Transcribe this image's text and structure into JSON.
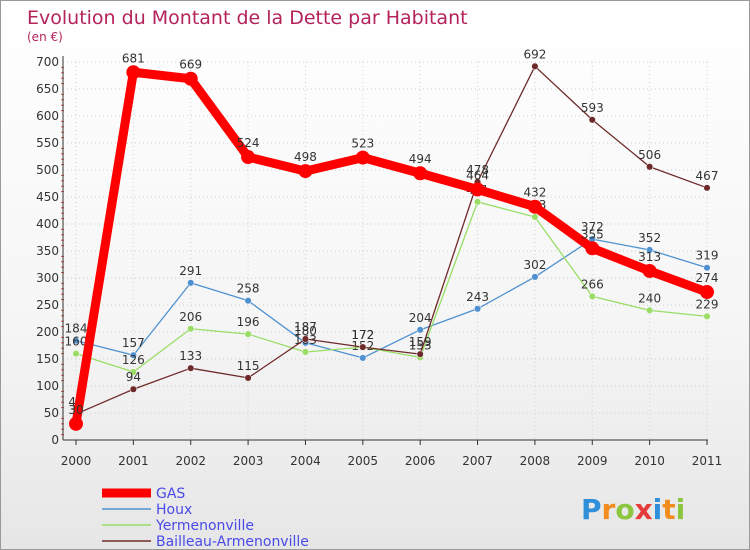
{
  "chart_data": {
    "type": "line",
    "title": "Evolution du Montant de la Dette par Habitant",
    "subtitle": "(en €)",
    "categories": [
      "2000",
      "2001",
      "2002",
      "2003",
      "2004",
      "2005",
      "2006",
      "2007",
      "2008",
      "2009",
      "2010",
      "2011"
    ],
    "ylim": [
      0,
      700
    ],
    "yticks": [
      0,
      50,
      100,
      150,
      200,
      250,
      300,
      350,
      400,
      450,
      500,
      550,
      600,
      650,
      700
    ],
    "grid": true,
    "legend_position": "bottom-left",
    "series": [
      {
        "name": "GAS",
        "color": "#ff0000",
        "values": [
          30,
          681,
          669,
          524,
          498,
          523,
          494,
          464,
          432,
          355,
          313,
          274
        ]
      },
      {
        "name": "Houx",
        "color": "#4f91cf",
        "values": [
          184,
          157,
          291,
          258,
          180,
          152,
          204,
          243,
          302,
          372,
          352,
          319
        ]
      },
      {
        "name": "Yermenonville",
        "color": "#99dd66",
        "values": [
          160,
          126,
          206,
          196,
          163,
          172,
          153,
          441,
          413,
          266,
          240,
          229
        ]
      },
      {
        "name": "Bailleau-Armenonville",
        "color": "#6e2a2a",
        "values": [
          48,
          94,
          133,
          115,
          187,
          172,
          159,
          478,
          692,
          593,
          506,
          467
        ]
      }
    ]
  },
  "logo": {
    "letters": [
      "P",
      "r",
      "o",
      "x",
      "i",
      "t",
      "i"
    ],
    "colors": [
      "#2f8fd8",
      "#f28c1e",
      "#8cc63e",
      "#e63b3b",
      "#2f8fd8",
      "#f28c1e",
      "#8cc63e"
    ]
  }
}
